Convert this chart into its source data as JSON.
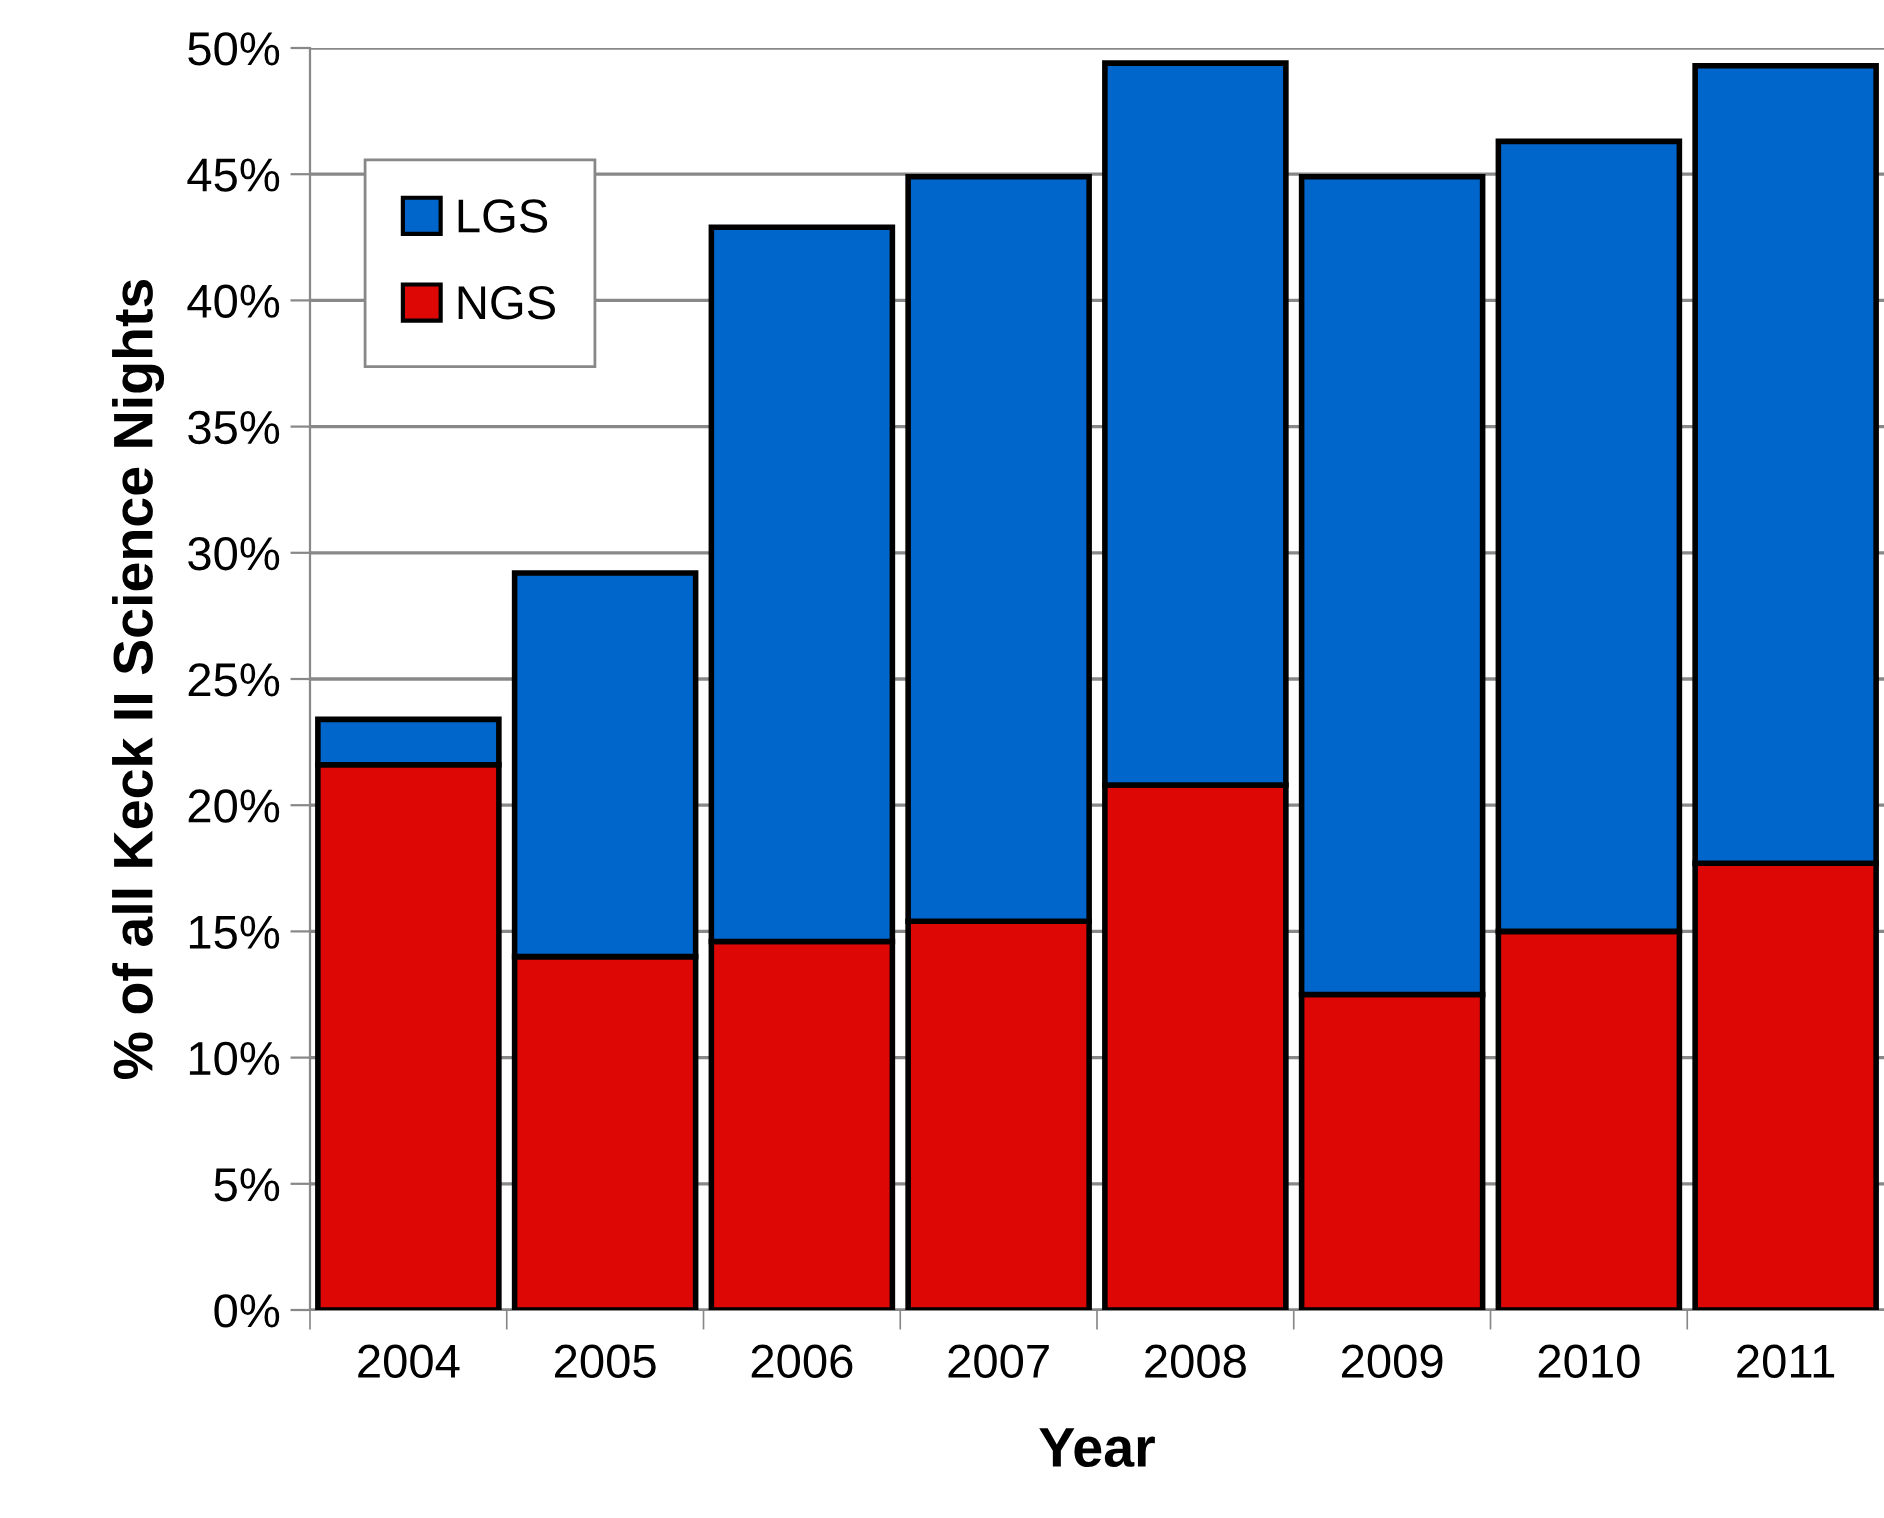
{
  "chart_data": {
    "type": "bar",
    "stacked": true,
    "xlabel": "Year",
    "ylabel": "% of all Keck II Science Nights",
    "categories": [
      "2004",
      "2005",
      "2006",
      "2007",
      "2008",
      "2009",
      "2010",
      "2011"
    ],
    "series": [
      {
        "name": "NGS",
        "color": "#dd0806",
        "values": [
          21.6,
          14.0,
          14.6,
          15.4,
          20.8,
          12.5,
          15.0,
          17.7
        ]
      },
      {
        "name": "LGS",
        "color": "#0066cc",
        "values": [
          1.8,
          15.2,
          28.3,
          29.5,
          28.6,
          32.4,
          31.3,
          31.6
        ]
      }
    ],
    "ylim": [
      0,
      50
    ],
    "yticks": [
      {
        "value": 0,
        "label": "0%"
      },
      {
        "value": 5,
        "label": "5%"
      },
      {
        "value": 10,
        "label": "10%"
      },
      {
        "value": 15,
        "label": "15%"
      },
      {
        "value": 20,
        "label": "20%"
      },
      {
        "value": 25,
        "label": "25%"
      },
      {
        "value": 30,
        "label": "30%"
      },
      {
        "value": 35,
        "label": "35%"
      },
      {
        "value": 40,
        "label": "40%"
      },
      {
        "value": 45,
        "label": "45%"
      },
      {
        "value": 50,
        "label": "50%"
      }
    ],
    "grid": "y",
    "legend": "top left"
  }
}
